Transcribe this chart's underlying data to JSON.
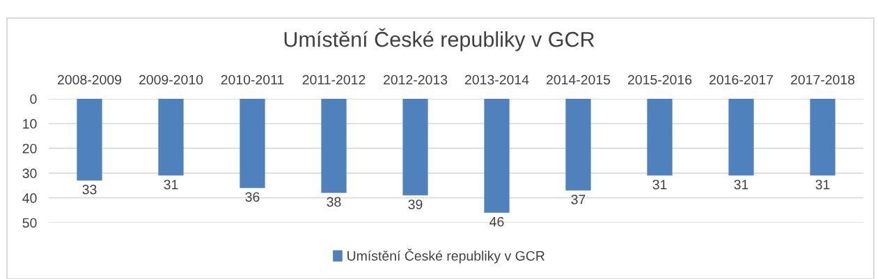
{
  "chart_data": {
    "type": "bar",
    "title": "Umístění České republiky v GCR",
    "categories": [
      "2008-2009",
      "2009-2010",
      "2010-2011",
      "2011-2012",
      "2012-2013",
      "2013-2014",
      "2014-2015",
      "2015-2016",
      "2016-2017",
      "2017-2018"
    ],
    "series": [
      {
        "name": "Umístění České republiky v GCR",
        "color": "#4f81bd",
        "values": [
          33,
          31,
          36,
          38,
          39,
          46,
          37,
          31,
          31,
          31
        ]
      }
    ],
    "ylim": [
      50,
      0
    ],
    "yticks": [
      0,
      10,
      20,
      30,
      40,
      50
    ],
    "grid": "y",
    "legend": "bottom",
    "data_labels": true
  }
}
